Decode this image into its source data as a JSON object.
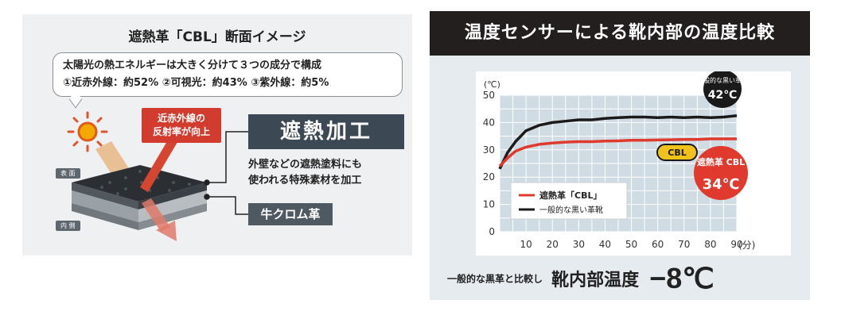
{
  "left": {
    "title": "遮熱革「CBL」断面イメージ",
    "bubble_line1": "太陽光の熱エネルギーは大きく分けて３つの成分で構成",
    "bubble_line2": "①近赤外線：約52%  ②可視光：約43%  ③紫外線：約5%",
    "nir_label_line1": "近赤外線の",
    "nir_label_line2": "反射率が向上",
    "shield_label": "遮熱加工",
    "shield_desc_line1": "外壁などの遮熱塗料にも",
    "shield_desc_line2": "使われる特殊素材を加工",
    "leather_label": "牛クロム革",
    "front_tag": "表 面",
    "back_tag": "内 側",
    "colors": {
      "red": "#d13c2f",
      "dark": "#3c4853",
      "panel": "#eef0f2"
    }
  },
  "right": {
    "header": "温度センサーによる靴内部の温度比較",
    "bottom_small": "一般的な黒革と比較し",
    "bottom_big": "靴内部温度",
    "bottom_value": "−8℃",
    "colors": {
      "header_bg": "#231f1f",
      "panel": "#e6ebf0",
      "grid_bg": "#d0dce4",
      "red": "#e03a2e",
      "black": "#1a1a1a"
    }
  },
  "chart_data": {
    "type": "line",
    "y_unit": "(℃)",
    "x_unit": "(分)",
    "xlim": [
      0,
      90
    ],
    "ylim": [
      0,
      50
    ],
    "x_ticks": [
      10,
      20,
      30,
      40,
      50,
      60,
      70,
      80,
      90
    ],
    "y_ticks": [
      0,
      10,
      20,
      30,
      40,
      50
    ],
    "badge": "CBL",
    "series": [
      {
        "name": "一般的な黒い革靴",
        "color": "#1a1a1a",
        "x": [
          0,
          3,
          6,
          10,
          15,
          20,
          25,
          30,
          35,
          40,
          45,
          50,
          55,
          60,
          65,
          70,
          75,
          80,
          85,
          90
        ],
        "values": [
          23,
          29,
          33,
          37,
          39,
          40,
          40.5,
          41,
          41,
          41.5,
          41.8,
          42,
          42,
          41.8,
          42,
          41.8,
          42,
          41.8,
          42,
          42.5
        ],
        "end_label": "一般的な黒い革靴",
        "end_value": "42℃"
      },
      {
        "name": "遮熱革「CBL」",
        "color": "#e03a2e",
        "x": [
          0,
          3,
          6,
          10,
          15,
          20,
          25,
          30,
          35,
          40,
          45,
          50,
          55,
          60,
          65,
          70,
          75,
          80,
          85,
          90
        ],
        "values": [
          24,
          27,
          29.5,
          31,
          32,
          32.5,
          32.8,
          33,
          33,
          33.2,
          33.3,
          33.5,
          33.5,
          33.6,
          33.7,
          33.8,
          33.8,
          34,
          34,
          34
        ],
        "end_label": "遮熱革 CBL",
        "end_value": "34℃"
      }
    ]
  }
}
